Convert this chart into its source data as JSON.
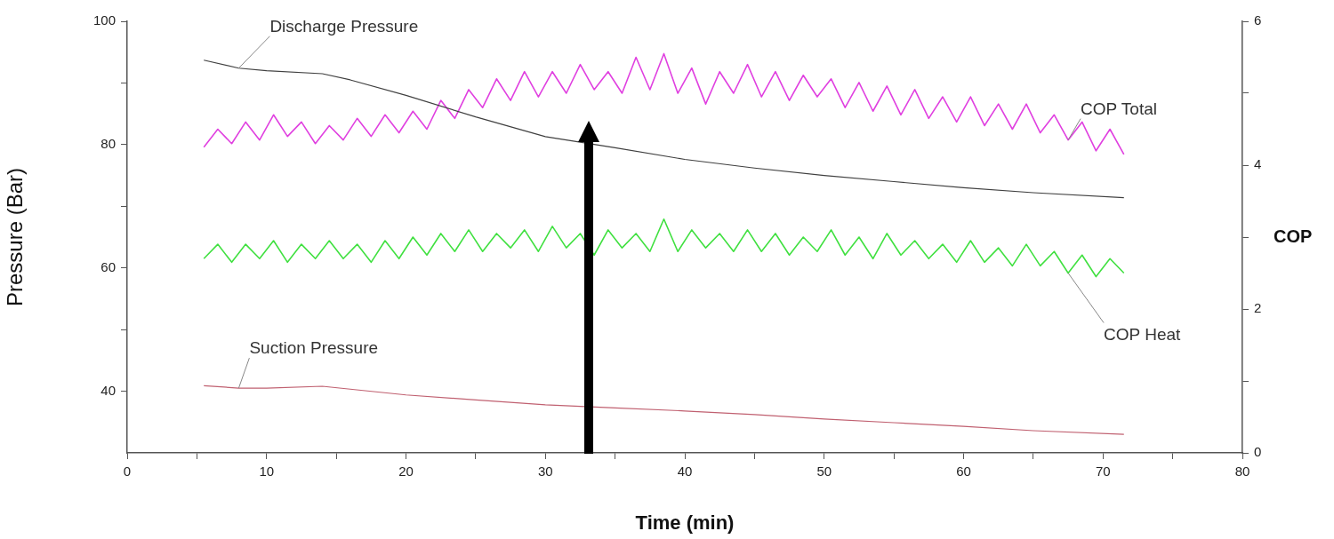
{
  "chart_data": {
    "type": "line",
    "xlabel": "Time (min)",
    "ylabel": "Pressure (Bar)",
    "y2label": "COP",
    "xlim": [
      0,
      80
    ],
    "xticks": [
      0,
      {
        "value": 5,
        "label": null
      },
      10,
      {
        "value": 15,
        "label": null
      },
      20,
      {
        "value": 25,
        "label": null
      },
      30,
      {
        "value": 35,
        "label": null
      },
      40,
      {
        "value": 45,
        "label": null
      },
      50,
      {
        "value": 55,
        "label": null
      },
      60,
      {
        "value": 65,
        "label": null
      },
      70,
      {
        "value": 75,
        "label": null
      },
      80
    ],
    "ylim": [
      30,
      100
    ],
    "yticks": [
      40,
      {
        "value": 50,
        "label": null
      },
      60,
      {
        "value": 70,
        "label": null
      },
      80,
      {
        "value": 90,
        "label": null
      },
      100
    ],
    "y2lim": [
      0,
      6
    ],
    "y2ticks": [
      0,
      {
        "value": 1,
        "label": null
      },
      2,
      {
        "value": 3,
        "label": null
      },
      4,
      {
        "value": 5,
        "label": null
      },
      6
    ],
    "grid": false,
    "legend": false,
    "series": [
      {
        "name": "Discharge Pressure",
        "color": "#404040",
        "x": [
          5.5,
          8,
          10,
          14,
          16,
          20,
          25,
          30,
          35,
          40,
          45,
          50,
          55,
          60,
          65,
          71.5
        ],
        "values": [
          93.7,
          92.4,
          92,
          91.5,
          90.5,
          88,
          84.5,
          81.3,
          79.5,
          77.6,
          76.2,
          75,
          74,
          73,
          72.2,
          71.4
        ]
      },
      {
        "name": "Suction Pressure",
        "color": "#c06070",
        "x": [
          5.5,
          8,
          10,
          14,
          20,
          25,
          30,
          35,
          40,
          45,
          50,
          55,
          60,
          65,
          71.5
        ],
        "values": [
          40.9,
          40.5,
          40.5,
          40.8,
          39.4,
          38.6,
          37.8,
          37.3,
          36.8,
          36.2,
          35.5,
          34.9,
          34.3,
          33.6,
          33.0
        ]
      },
      {
        "name": "COP Total",
        "color": "#e040e0",
        "axis": "y2",
        "x": [
          5.5,
          6.5,
          7.5,
          8.5,
          9.5,
          10.5,
          11.5,
          12.5,
          13.5,
          14.5,
          15.5,
          16.5,
          17.5,
          18.5,
          19.5,
          20.5,
          21.5,
          22.5,
          23.5,
          24.5,
          25.5,
          26.5,
          27.5,
          28.5,
          29.5,
          30.5,
          31.5,
          32.5,
          33.5,
          34.5,
          35.5,
          36.5,
          37.5,
          38.5,
          39.5,
          40.5,
          41.5,
          42.5,
          43.5,
          44.5,
          45.5,
          46.5,
          47.5,
          48.5,
          49.5,
          50.5,
          51.5,
          52.5,
          53.5,
          54.5,
          55.5,
          56.5,
          57.5,
          58.5,
          59.5,
          60.5,
          61.5,
          62.5,
          63.5,
          64.5,
          65.5,
          66.5,
          67.5,
          68.5,
          69.5,
          70.5,
          71.5
        ],
        "values": [
          4.25,
          4.5,
          4.3,
          4.6,
          4.35,
          4.7,
          4.4,
          4.6,
          4.3,
          4.55,
          4.35,
          4.65,
          4.4,
          4.7,
          4.45,
          4.75,
          4.5,
          4.9,
          4.65,
          5.05,
          4.8,
          5.2,
          4.9,
          5.3,
          4.95,
          5.3,
          5.0,
          5.4,
          5.05,
          5.3,
          5.0,
          5.5,
          5.05,
          5.55,
          5.0,
          5.35,
          4.85,
          5.3,
          5.0,
          5.4,
          4.95,
          5.3,
          4.9,
          5.25,
          4.95,
          5.2,
          4.8,
          5.15,
          4.75,
          5.1,
          4.7,
          5.05,
          4.65,
          4.95,
          4.6,
          4.95,
          4.55,
          4.85,
          4.5,
          4.85,
          4.45,
          4.7,
          4.35,
          4.6,
          4.2,
          4.5,
          4.15
        ]
      },
      {
        "name": "COP Heat",
        "color": "#40e040",
        "axis": "y2",
        "x": [
          5.5,
          6.5,
          7.5,
          8.5,
          9.5,
          10.5,
          11.5,
          12.5,
          13.5,
          14.5,
          15.5,
          16.5,
          17.5,
          18.5,
          19.5,
          20.5,
          21.5,
          22.5,
          23.5,
          24.5,
          25.5,
          26.5,
          27.5,
          28.5,
          29.5,
          30.5,
          31.5,
          32.5,
          33.5,
          34.5,
          35.5,
          36.5,
          37.5,
          38.5,
          39.5,
          40.5,
          41.5,
          42.5,
          43.5,
          44.5,
          45.5,
          46.5,
          47.5,
          48.5,
          49.5,
          50.5,
          51.5,
          52.5,
          53.5,
          54.5,
          55.5,
          56.5,
          57.5,
          58.5,
          59.5,
          60.5,
          61.5,
          62.5,
          63.5,
          64.5,
          65.5,
          66.5,
          67.5,
          68.5,
          69.5,
          70.5,
          71.5
        ],
        "values": [
          2.7,
          2.9,
          2.65,
          2.9,
          2.7,
          2.95,
          2.65,
          2.9,
          2.7,
          2.95,
          2.7,
          2.9,
          2.65,
          2.95,
          2.7,
          3.0,
          2.75,
          3.05,
          2.8,
          3.1,
          2.8,
          3.05,
          2.85,
          3.1,
          2.8,
          3.15,
          2.85,
          3.05,
          2.75,
          3.1,
          2.85,
          3.05,
          2.8,
          3.25,
          2.8,
          3.1,
          2.85,
          3.05,
          2.8,
          3.1,
          2.8,
          3.05,
          2.75,
          3.0,
          2.8,
          3.1,
          2.75,
          3.0,
          2.7,
          3.05,
          2.75,
          2.95,
          2.7,
          2.9,
          2.65,
          2.95,
          2.65,
          2.85,
          2.6,
          2.9,
          2.6,
          2.8,
          2.5,
          2.75,
          2.45,
          2.7,
          2.5
        ]
      }
    ]
  }
}
